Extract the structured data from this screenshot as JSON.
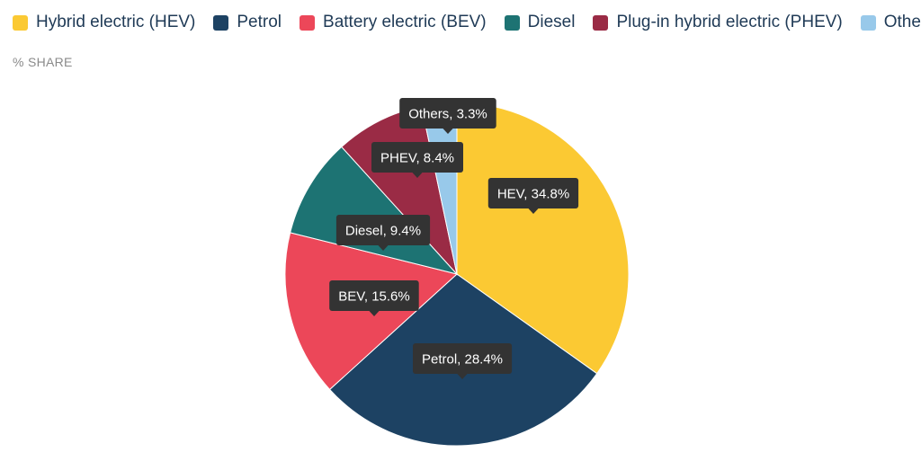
{
  "subtitle": "% SHARE",
  "colors": {
    "hev": "#fbc933",
    "petrol": "#1d4263",
    "bev": "#ec4759",
    "diesel": "#1d7373",
    "phev": "#9a2b45",
    "others": "#98c9ea",
    "tooltip_bg": "#333333"
  },
  "chart_data": {
    "type": "pie",
    "categories": [
      "Hybrid electric (HEV)",
      "Petrol",
      "Battery electric (BEV)",
      "Diesel",
      "Plug-in hybrid electric (PHEV)",
      "Others"
    ],
    "short_labels": [
      "HEV",
      "Petrol",
      "BEV",
      "Diesel",
      "PHEV",
      "Others"
    ],
    "values": [
      34.8,
      28.4,
      15.6,
      9.4,
      8.4,
      3.3
    ],
    "data_labels": [
      "HEV, 34.8%",
      "Petrol, 28.4%",
      "BEV, 15.6%",
      "Diesel, 9.4%",
      "PHEV, 8.4%",
      "Others, 3.3%"
    ],
    "unit": "%",
    "legend_position": "top-left",
    "start_angle": "12 o'clock",
    "direction": "clockwise"
  }
}
